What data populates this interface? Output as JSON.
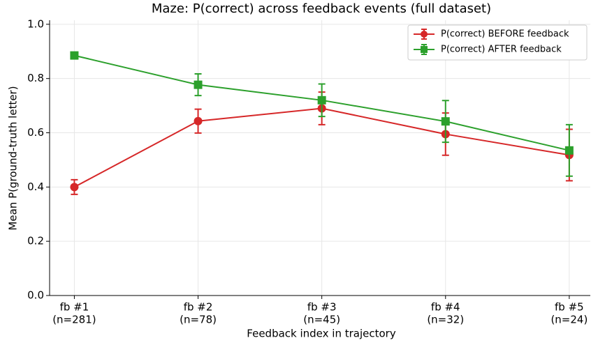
{
  "chart_data": {
    "type": "line",
    "title": "Maze: P(correct) across feedback events (full dataset)",
    "x_label": "Feedback index in trajectory",
    "y_label": "Mean P(ground-truth letter)",
    "categories": [
      [
        "fb #1",
        "(n=281)"
      ],
      [
        "fb #2",
        "(n=78)"
      ],
      [
        "fb #3",
        "(n=45)"
      ],
      [
        "fb #4",
        "(n=32)"
      ],
      [
        "fb #5",
        "(n=24)"
      ]
    ],
    "series": [
      {
        "name": "P(correct) BEFORE feedback",
        "color": "#d62728",
        "marker": "circle",
        "values": [
          0.4,
          0.643,
          0.69,
          0.595,
          0.518
        ],
        "errors": [
          0.027,
          0.044,
          0.06,
          0.078,
          0.095
        ]
      },
      {
        "name": "P(correct) AFTER feedback",
        "color": "#2ca02c",
        "marker": "square",
        "values": [
          0.885,
          0.777,
          0.72,
          0.642,
          0.535
        ],
        "errors": [
          0.008,
          0.04,
          0.06,
          0.077,
          0.095
        ]
      }
    ],
    "ylim": [
      0,
      1.015
    ],
    "yticks": [
      {
        "value": 0,
        "label": "0.0"
      },
      0.2,
      0.4,
      0.6,
      0.8,
      {
        "value": 1,
        "label": "1.0"
      }
    ],
    "grid": true,
    "legend": "upper right"
  }
}
